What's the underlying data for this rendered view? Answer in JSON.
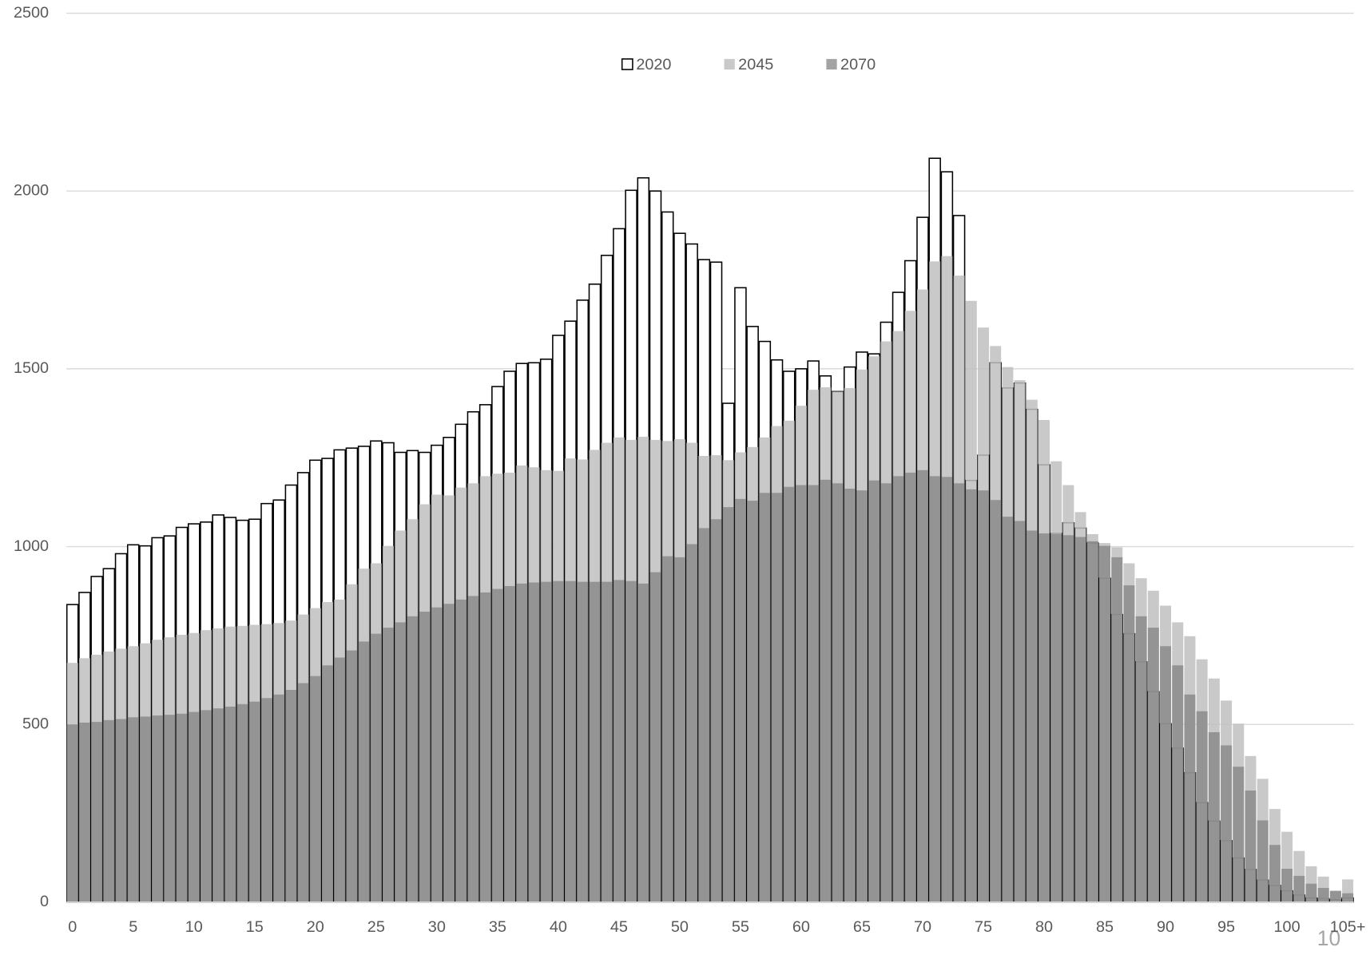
{
  "chart_data": {
    "type": "overlapping_bar",
    "categories": [
      "0",
      null,
      null,
      null,
      null,
      "5",
      null,
      null,
      null,
      null,
      "10",
      null,
      null,
      null,
      null,
      "15",
      null,
      null,
      null,
      null,
      "20",
      null,
      null,
      null,
      null,
      "25",
      null,
      null,
      null,
      null,
      "30",
      null,
      null,
      null,
      null,
      "35",
      null,
      null,
      null,
      null,
      "40",
      null,
      null,
      null,
      null,
      "45",
      null,
      null,
      null,
      null,
      "50",
      null,
      null,
      null,
      null,
      "55",
      null,
      null,
      null,
      null,
      "60",
      null,
      null,
      null,
      null,
      "65",
      null,
      null,
      null,
      null,
      "70",
      null,
      null,
      null,
      null,
      "75",
      null,
      null,
      null,
      null,
      "80",
      null,
      null,
      null,
      null,
      "85",
      null,
      null,
      null,
      null,
      "90",
      null,
      null,
      null,
      null,
      "95",
      null,
      null,
      null,
      null,
      "100",
      null,
      null,
      null,
      null,
      "105+"
    ],
    "series": [
      {
        "name": "2020",
        "color": "#ffffff",
        "edgecolor": "#000000",
        "values": [
          837,
          871,
          916,
          938,
          980,
          1005,
          1002,
          1025,
          1030,
          1054,
          1064,
          1069,
          1089,
          1082,
          1074,
          1077,
          1121,
          1131,
          1173,
          1208,
          1243,
          1248,
          1272,
          1277,
          1282,
          1297,
          1292,
          1265,
          1270,
          1265,
          1285,
          1307,
          1344,
          1379,
          1399,
          1450,
          1493,
          1515,
          1517,
          1527,
          1594,
          1634,
          1693,
          1738,
          1819,
          1894,
          2002,
          2037,
          2000,
          1941,
          1881,
          1851,
          1807,
          1800,
          1403,
          1728,
          1619,
          1577,
          1525,
          1493,
          1500,
          1522,
          1480,
          1436,
          1505,
          1547,
          1542,
          1631,
          1715,
          1804,
          1926,
          2092,
          2054,
          1931,
          1186,
          1257,
          1517,
          1446,
          1460,
          1386,
          1230,
          1037,
          1067,
          1052,
          1010,
          911,
          809,
          755,
          676,
          592,
          502,
          433,
          364,
          280,
          228,
          173,
          124,
          92,
          62,
          47,
          32,
          20,
          12,
          10,
          7,
          12
        ]
      },
      {
        "name": "2045",
        "color": "#bfbfbf",
        "values": [
          673,
          686,
          696,
          705,
          713,
          720,
          728,
          738,
          745,
          752,
          757,
          765,
          770,
          775,
          777,
          780,
          782,
          785,
          792,
          809,
          827,
          844,
          851,
          894,
          938,
          953,
          1002,
          1045,
          1077,
          1119,
          1146,
          1144,
          1166,
          1178,
          1198,
          1205,
          1208,
          1228,
          1223,
          1215,
          1213,
          1248,
          1245,
          1272,
          1292,
          1307,
          1300,
          1309,
          1300,
          1297,
          1302,
          1292,
          1255,
          1257,
          1243,
          1265,
          1280,
          1307,
          1339,
          1354,
          1396,
          1441,
          1448,
          1436,
          1446,
          1498,
          1535,
          1577,
          1606,
          1663,
          1723,
          1802,
          1817,
          1762,
          1691,
          1616,
          1564,
          1505,
          1468,
          1413,
          1356,
          1240,
          1173,
          1097,
          1035,
          1010,
          998,
          953,
          911,
          876,
          834,
          787,
          748,
          683,
          629,
          567,
          502,
          411,
          347,
          262,
          198,
          144,
          101,
          72,
          32,
          64
        ]
      },
      {
        "name": "2070",
        "color": "#7f7f7f",
        "values": [
          500,
          505,
          507,
          512,
          515,
          520,
          522,
          525,
          527,
          530,
          535,
          540,
          545,
          550,
          557,
          564,
          574,
          584,
          597,
          616,
          636,
          666,
          688,
          708,
          733,
          755,
          772,
          787,
          804,
          817,
          829,
          839,
          851,
          861,
          871,
          881,
          889,
          896,
          899,
          901,
          903,
          903,
          901,
          901,
          901,
          906,
          903,
          896,
          928,
          973,
          970,
          1007,
          1052,
          1077,
          1111,
          1134,
          1129,
          1151,
          1151,
          1168,
          1173,
          1173,
          1188,
          1178,
          1163,
          1158,
          1186,
          1178,
          1198,
          1208,
          1215,
          1198,
          1196,
          1178,
          1161,
          1158,
          1131,
          1084,
          1072,
          1045,
          1037,
          1035,
          1032,
          1027,
          1015,
          1002,
          970,
          891,
          804,
          772,
          720,
          666,
          584,
          537,
          478,
          441,
          381,
          314,
          230,
          161,
          94,
          74,
          52,
          40,
          32,
          25
        ]
      }
    ],
    "ylim": [
      0,
      2500
    ],
    "yticks": [
      0,
      500,
      1000,
      1500,
      2000,
      2500
    ],
    "grid": true,
    "legend": "top",
    "page_number": "10"
  }
}
